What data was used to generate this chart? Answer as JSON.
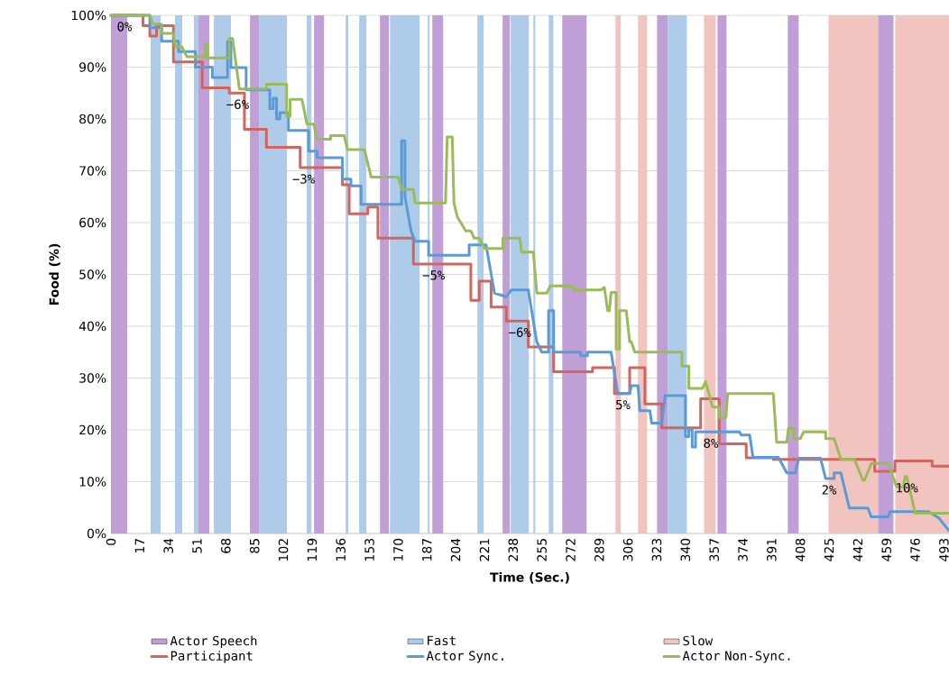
{
  "chart_data": {
    "type": "line",
    "xlabel": "Time (Sec.)",
    "ylabel": "Food (%)",
    "xlim": [
      0,
      496
    ],
    "ylim": [
      0,
      100
    ],
    "xticks": [
      0,
      17,
      34,
      51,
      68,
      85,
      102,
      119,
      136,
      153,
      170,
      187,
      204,
      221,
      238,
      255,
      272,
      289,
      306,
      323,
      340,
      357,
      374,
      391,
      408,
      425,
      442,
      459,
      476,
      493
    ],
    "yticks": [
      {
        "value": 0,
        "label": "0%"
      },
      {
        "value": 10,
        "label": "10%"
      },
      {
        "value": 20,
        "label": "20%"
      },
      {
        "value": 30,
        "label": "30%"
      },
      {
        "value": 40,
        "label": "40%"
      },
      {
        "value": 50,
        "label": "50%"
      },
      {
        "value": 60,
        "label": "60%"
      },
      {
        "value": 70,
        "label": "70%"
      },
      {
        "value": 80,
        "label": "80%"
      },
      {
        "value": 90,
        "label": "90%"
      },
      {
        "value": 100,
        "label": "100%"
      }
    ],
    "grid": "y",
    "legend": "bottom",
    "line_style": "solid",
    "bands": [
      {
        "axis": "x",
        "from": 0,
        "to": 9.6,
        "label": "Actor Speech",
        "color": "#bf9fd5"
      },
      {
        "axis": "x",
        "from": 51.8,
        "to": 58.2,
        "color": "#bf9fd5"
      },
      {
        "axis": "x",
        "from": 82.3,
        "to": 87.6,
        "color": "#bf9fd5"
      },
      {
        "axis": "x",
        "from": 120.2,
        "to": 126.1,
        "color": "#bf9fd5"
      },
      {
        "axis": "x",
        "from": 159.2,
        "to": 164.5,
        "color": "#bf9fd5"
      },
      {
        "axis": "x",
        "from": 190.2,
        "to": 196.6,
        "color": "#bf9fd5"
      },
      {
        "axis": "x",
        "from": 231.8,
        "to": 236.1,
        "color": "#bf9fd5"
      },
      {
        "axis": "x",
        "from": 267.1,
        "to": 281.5,
        "color": "#bf9fd5"
      },
      {
        "axis": "x",
        "from": 323.2,
        "to": 329.6,
        "color": "#bf9fd5"
      },
      {
        "axis": "x",
        "from": 359,
        "to": 364.3,
        "color": "#bf9fd5"
      },
      {
        "axis": "x",
        "from": 400.6,
        "to": 407,
        "color": "#bf9fd5"
      },
      {
        "axis": "x",
        "from": 454,
        "to": 463.1,
        "color": "#bf9fd5"
      },
      {
        "axis": "x",
        "from": 23.5,
        "to": 29.4,
        "label": "Fast",
        "color": "#aecbea"
      },
      {
        "axis": "x",
        "from": 37.9,
        "to": 42.2,
        "color": "#aecbea"
      },
      {
        "axis": "x",
        "from": 49.1,
        "to": 51.8,
        "color": "#aecbea"
      },
      {
        "axis": "x",
        "from": 60.9,
        "to": 71,
        "color": "#aecbea"
      },
      {
        "axis": "x",
        "from": 87.6,
        "to": 104.2,
        "color": "#aecbea"
      },
      {
        "axis": "x",
        "from": 115.9,
        "to": 118.6,
        "color": "#aecbea"
      },
      {
        "axis": "x",
        "from": 138.9,
        "to": 140.5,
        "color": "#aecbea"
      },
      {
        "axis": "x",
        "from": 146.9,
        "to": 151.2,
        "color": "#aecbea"
      },
      {
        "axis": "x",
        "from": 165.1,
        "to": 182.7,
        "color": "#aecbea"
      },
      {
        "axis": "x",
        "from": 187.5,
        "to": 188.6,
        "color": "#aecbea"
      },
      {
        "axis": "x",
        "from": 216.9,
        "to": 220.6,
        "color": "#aecbea"
      },
      {
        "axis": "x",
        "from": 236.6,
        "to": 247.3,
        "color": "#aecbea"
      },
      {
        "axis": "x",
        "from": 250,
        "to": 251.1,
        "color": "#aecbea"
      },
      {
        "axis": "x",
        "from": 259.1,
        "to": 261.8,
        "color": "#aecbea"
      },
      {
        "axis": "x",
        "from": 329.6,
        "to": 340.8,
        "color": "#aecbea"
      },
      {
        "axis": "x",
        "from": 298.6,
        "to": 301.8,
        "label": "Slow",
        "color": "#f2c4c0"
      },
      {
        "axis": "x",
        "from": 311.9,
        "to": 317.3,
        "color": "#f2c4c0"
      },
      {
        "axis": "x",
        "from": 351,
        "to": 357.9,
        "color": "#f2c4c0"
      },
      {
        "axis": "x",
        "from": 424.7,
        "to": 454,
        "color": "#f2c4c0"
      },
      {
        "axis": "x",
        "from": 464.2,
        "to": 496,
        "color": "#f2c4c0"
      }
    ],
    "series": [
      {
        "name": "Participant",
        "color": "#d0665e",
        "x": [
          0,
          19,
          19,
          23,
          23,
          27,
          27,
          37,
          37,
          54,
          54,
          70,
          70,
          79,
          79,
          92,
          92,
          112,
          112,
          137,
          137,
          141,
          141,
          152,
          152,
          158,
          158,
          179,
          179,
          213,
          213,
          218,
          218,
          225,
          225,
          234,
          234,
          247,
          247,
          262,
          262,
          285,
          285,
          298,
          298,
          307,
          307,
          316,
          316,
          326,
          326,
          349,
          349,
          360,
          360,
          376,
          376,
          392,
          392,
          452,
          452,
          464,
          464,
          486,
          486,
          496
        ],
        "values": [
          100,
          100,
          98,
          98,
          96,
          96,
          98,
          98,
          91,
          91,
          86,
          86,
          85,
          85,
          78,
          78,
          74.5,
          74.5,
          70.6,
          70.6,
          67.3,
          67.3,
          61.7,
          61.7,
          63,
          63,
          57,
          57,
          52,
          52,
          45,
          45,
          48.7,
          48.7,
          43.7,
          43.7,
          41,
          41,
          36,
          36,
          31.2,
          31.2,
          32,
          32,
          27,
          27,
          32,
          32,
          25,
          25,
          20.4,
          20.4,
          26,
          26,
          17.3,
          17.3,
          14.6,
          14.6,
          14.3,
          14.3,
          12,
          12,
          14,
          14,
          13,
          13
        ]
      },
      {
        "name": "Actor Sync.",
        "color": "#5b9bd5",
        "x": [
          0,
          23,
          23,
          30,
          30,
          40,
          40,
          50,
          50,
          60,
          60,
          69,
          69,
          71,
          71,
          80,
          80,
          94,
          94,
          96,
          96,
          98,
          98,
          100,
          100,
          105,
          105,
          117,
          117,
          122,
          122,
          137,
          137,
          142,
          142,
          148,
          148,
          172,
          172,
          174,
          174,
          177.6,
          180,
          188,
          188,
          212,
          212,
          222,
          227,
          234,
          237,
          247,
          252,
          255,
          259,
          259,
          262,
          262,
          278,
          278,
          282,
          282,
          296,
          300,
          307,
          308,
          312,
          313,
          319,
          320,
          326,
          328,
          338,
          340,
          340,
          342,
          342,
          344,
          344,
          346,
          346,
          372,
          373,
          378,
          380,
          395,
          400,
          405,
          407,
          420,
          423,
          428,
          428,
          432,
          437,
          448,
          450,
          460,
          461,
          484,
          490,
          496
        ],
        "values": [
          100,
          100,
          97.6,
          97.6,
          95,
          95,
          93,
          93,
          90,
          90,
          88,
          88,
          94.9,
          94.9,
          89.9,
          89.9,
          85.6,
          85.6,
          82,
          82,
          84,
          84,
          80,
          80,
          81.2,
          81.2,
          77.8,
          77.8,
          73.8,
          73.8,
          72.5,
          72.5,
          68.4,
          68.4,
          67.1,
          67.1,
          63.5,
          63.5,
          75.8,
          75.8,
          65,
          58.4,
          56.4,
          56.4,
          53.7,
          53.7,
          55.7,
          55.7,
          46.4,
          45.7,
          47,
          47,
          37,
          35,
          35,
          43,
          43,
          35,
          35,
          34.3,
          34.3,
          35,
          35,
          27,
          27,
          28.5,
          28.5,
          23.7,
          23.7,
          21.3,
          21.3,
          26.6,
          26.6,
          26.6,
          18.7,
          18.7,
          20,
          20,
          16.7,
          16.7,
          19.6,
          19.6,
          19,
          19,
          14.7,
          14.7,
          11.7,
          11.7,
          14.5,
          14.5,
          10.6,
          10.6,
          11.7,
          11.7,
          4.9,
          4.9,
          3.2,
          3.2,
          4.2,
          4.2,
          3,
          0.5
        ]
      },
      {
        "name": "Actor Non-Sync.",
        "color": "#9bbb59",
        "x": [
          0,
          23,
          25,
          30,
          30,
          37,
          38,
          42,
          45,
          56,
          56,
          57,
          57,
          70,
          70,
          72,
          76,
          92,
          92,
          104,
          104,
          106,
          106,
          113,
          116,
          120,
          122,
          130,
          130,
          138,
          140,
          150,
          154,
          170,
          172,
          179,
          180,
          198,
          199,
          202,
          203,
          205,
          210,
          213,
          215,
          218,
          221,
          232,
          232,
          242,
          243,
          250,
          252,
          258,
          260,
          273,
          274,
          290,
          292,
          294,
          295,
          296,
          299,
          299,
          301,
          301,
          305,
          307,
          308,
          310,
          338,
          338,
          342,
          342,
          350,
          352,
          356,
          360,
          360,
          364,
          365,
          392,
          394,
          400,
          401,
          404,
          404,
          408,
          410,
          423,
          423,
          428,
          432,
          440,
          445,
          446,
          450,
          460,
          465,
          469,
          470,
          471,
          476,
          496
        ],
        "values": [
          100,
          100,
          98.3,
          98.3,
          96.5,
          96.5,
          93.9,
          93.9,
          92,
          92,
          94.5,
          94.5,
          91.8,
          91.8,
          95.5,
          95.5,
          85.8,
          85.8,
          86.7,
          86.7,
          80.5,
          80.5,
          83.8,
          83.8,
          79,
          79,
          76.1,
          76.1,
          76.8,
          76.8,
          74.1,
          74.1,
          68.8,
          68.8,
          66.4,
          66.4,
          63.8,
          63.8,
          76.5,
          76.5,
          63.8,
          61.1,
          58.4,
          58.4,
          57,
          57,
          55,
          55,
          57,
          57,
          54.3,
          54.3,
          46.4,
          46.4,
          47.8,
          47.8,
          47,
          47,
          47.5,
          43,
          43,
          46.5,
          46.5,
          35.6,
          35.6,
          43,
          43,
          37,
          37,
          35,
          35,
          32.3,
          32.3,
          28,
          28,
          29.3,
          24.4,
          24.4,
          22.4,
          22.4,
          27,
          27,
          17.6,
          17.6,
          20.3,
          20.3,
          18.3,
          18.3,
          19.6,
          19.6,
          18.3,
          18.3,
          14.3,
          14.3,
          10.3,
          10.3,
          13.5,
          13.5,
          9,
          9,
          11,
          11,
          3.9,
          3.9
        ]
      }
    ],
    "annotations": [
      {
        "text": "0%",
        "x": 8,
        "y": 100
      },
      {
        "text": "−6%",
        "x": 75,
        "y": 85
      },
      {
        "text": "−3%",
        "x": 114,
        "y": 70.6
      },
      {
        "text": "−5%",
        "x": 191,
        "y": 52
      },
      {
        "text": "−6%",
        "x": 242,
        "y": 41
      },
      {
        "text": "5%",
        "x": 303,
        "y": 27
      },
      {
        "text": "8%",
        "x": 355,
        "y": 19.6
      },
      {
        "text": "2%",
        "x": 425,
        "y": 10.6
      },
      {
        "text": "10%",
        "x": 471,
        "y": 11
      }
    ]
  }
}
